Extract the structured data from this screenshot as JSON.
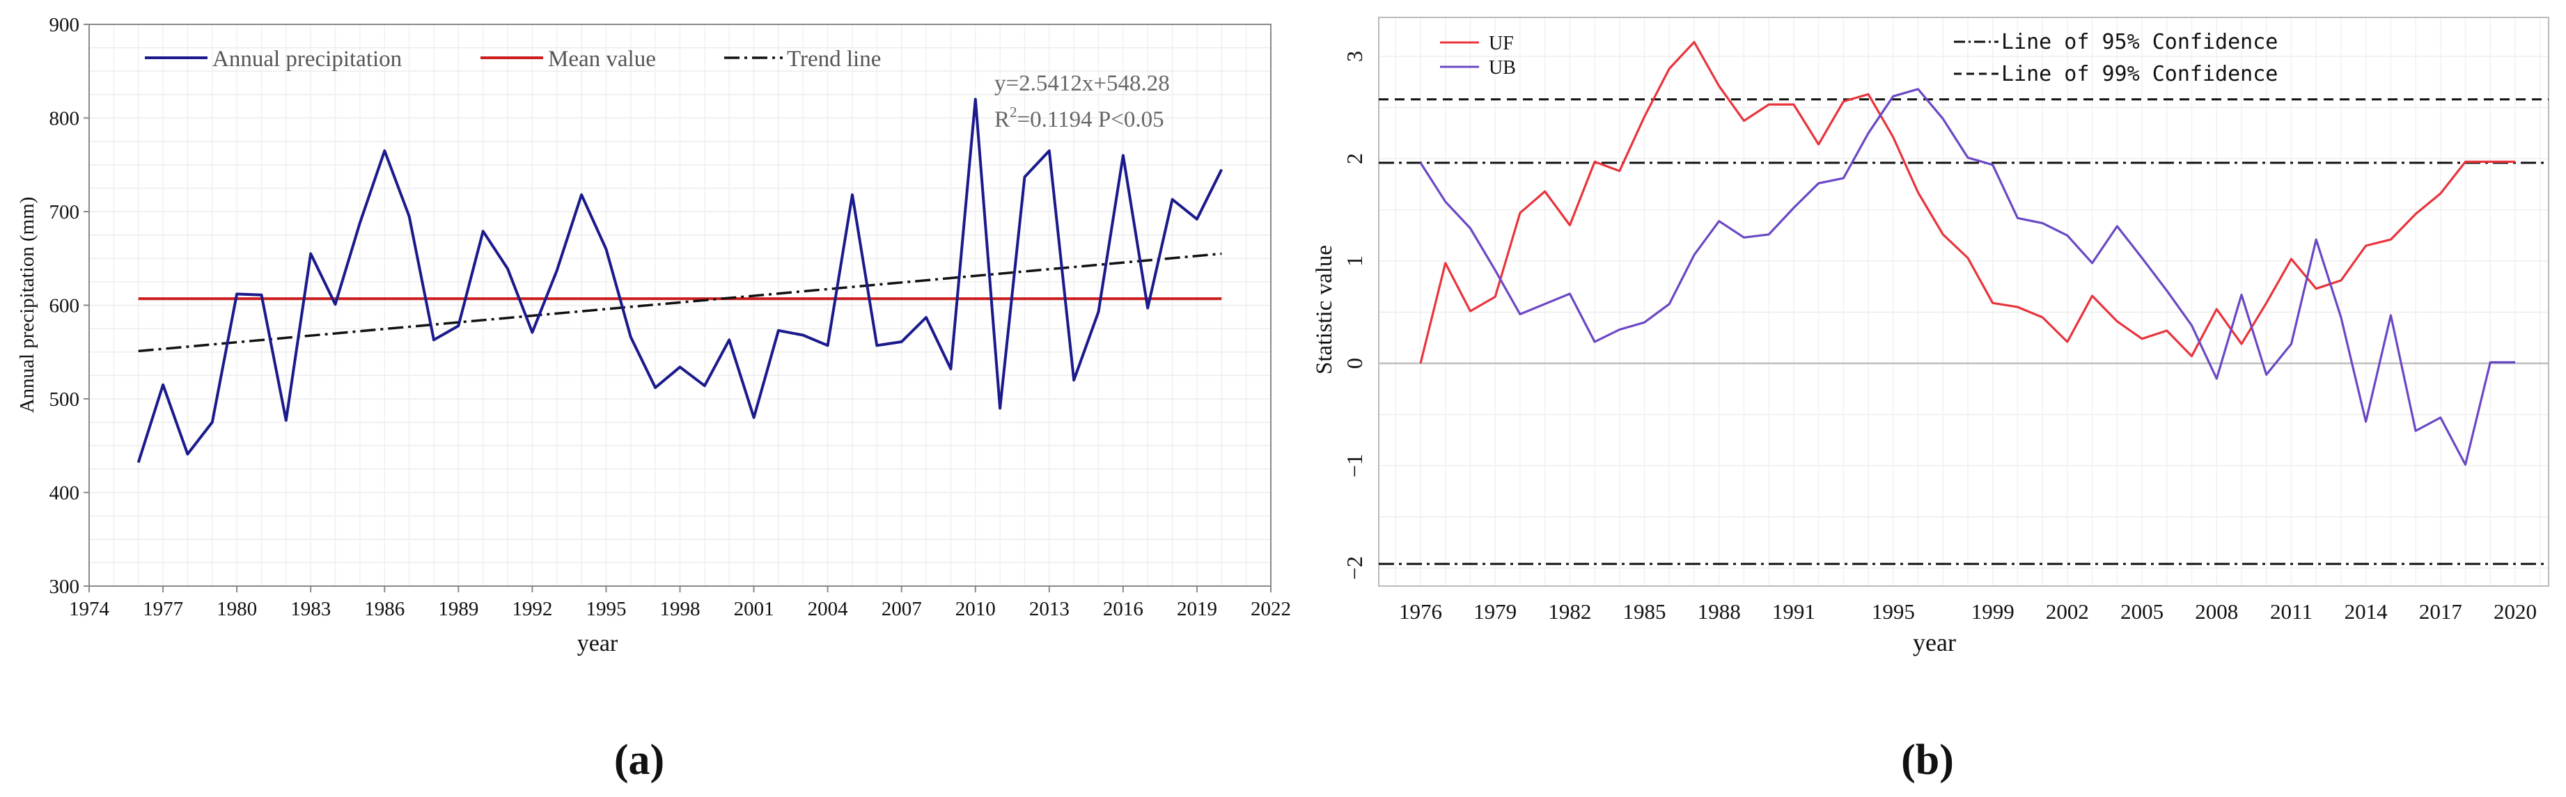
{
  "panels": [
    {
      "label": "(a)"
    },
    {
      "label": "(b)"
    }
  ],
  "chart_data": [
    {
      "type": "line",
      "xlabel": "year",
      "ylabel": "Annual precipitation (mm)",
      "xlim": [
        1974,
        2022
      ],
      "ylim": [
        300,
        900
      ],
      "xticks": [
        1974,
        1977,
        1980,
        1983,
        1986,
        1989,
        1992,
        1995,
        1998,
        2001,
        2004,
        2007,
        2010,
        2013,
        2016,
        2019,
        2022
      ],
      "yticks": [
        300,
        400,
        500,
        600,
        700,
        800,
        900
      ],
      "grid": true,
      "legend_placement": "top",
      "annotation": {
        "equation": "y=2.5412x+548.28",
        "r2_prefix": "R",
        "r2_sup": "2",
        "r2_rest": "=0.1194  P<0.05"
      },
      "series": [
        {
          "name": "Annual precipitation",
          "color": "#1a1a8c",
          "style": "solid",
          "x": [
            1976,
            1977,
            1978,
            1979,
            1980,
            1981,
            1982,
            1983,
            1984,
            1985,
            1986,
            1987,
            1988,
            1989,
            1990,
            1991,
            1992,
            1993,
            1994,
            1995,
            1996,
            1997,
            1998,
            1999,
            2000,
            2001,
            2002,
            2003,
            2004,
            2005,
            2006,
            2007,
            2008,
            2009,
            2010,
            2011,
            2012,
            2013,
            2014,
            2015,
            2016,
            2017,
            2018,
            2019,
            2020
          ],
          "y": [
            432,
            515,
            441,
            475,
            612,
            611,
            477,
            655,
            601,
            688,
            765,
            695,
            563,
            578,
            679,
            639,
            571,
            637,
            718,
            660,
            566,
            512,
            534,
            514,
            563,
            480,
            573,
            568,
            557,
            718,
            557,
            561,
            587,
            532,
            820,
            490,
            737,
            765,
            520,
            593,
            760,
            597,
            713,
            692,
            745
          ]
        },
        {
          "name": "Mean value",
          "color": "#cc1f1f",
          "style": "solid",
          "x": [
            1976,
            2020
          ],
          "y": [
            607,
            607
          ]
        },
        {
          "name": "Trend line",
          "color": "#111111",
          "style": "dashdot",
          "x": [
            1976,
            2020
          ],
          "y": [
            551,
            655
          ]
        }
      ]
    },
    {
      "type": "line",
      "xlabel": "year",
      "ylabel": "Statistic value",
      "xlim": [
        1975,
        2021
      ],
      "ylim": [
        -2.2,
        3.3
      ],
      "xticks": [
        1976,
        1979,
        1982,
        1985,
        1988,
        1991,
        1995,
        1999,
        2002,
        2005,
        2008,
        2011,
        2014,
        2017,
        2020
      ],
      "yticks": [
        -2,
        -1,
        0,
        1,
        2,
        3
      ],
      "grid": true,
      "legend_placement": "top",
      "series": [
        {
          "name": "UF",
          "color": "#e8343c",
          "style": "solid",
          "x": [
            1976,
            1977,
            1978,
            1979,
            1980,
            1981,
            1982,
            1983,
            1984,
            1985,
            1986,
            1987,
            1988,
            1989,
            1990,
            1991,
            1992,
            1993,
            1994,
            1995,
            1996,
            1997,
            1998,
            1999,
            2000,
            2001,
            2002,
            2003,
            2004,
            2005,
            2006,
            2007,
            2008,
            2009,
            2010,
            2011,
            2012,
            2013,
            2014,
            2015,
            2016,
            2017,
            2018,
            2019,
            2020
          ],
          "y": [
            0,
            0.98,
            0.51,
            0.65,
            1.47,
            1.68,
            1.35,
            1.97,
            1.88,
            2.41,
            2.88,
            3.14,
            2.71,
            2.37,
            2.53,
            2.53,
            2.14,
            2.56,
            2.63,
            2.21,
            1.67,
            1.26,
            1.03,
            0.59,
            0.55,
            0.45,
            0.21,
            0.66,
            0.41,
            0.24,
            0.32,
            0.07,
            0.53,
            0.19,
            0.59,
            1.02,
            0.73,
            0.81,
            1.15,
            1.21,
            1.46,
            1.66,
            1.97,
            1.97,
            1.97
          ]
        },
        {
          "name": "UB",
          "color": "#6a48c4",
          "style": "solid",
          "x": [
            1976,
            1977,
            1978,
            1979,
            1980,
            1981,
            1982,
            1983,
            1984,
            1985,
            1986,
            1987,
            1988,
            1989,
            1990,
            1991,
            1992,
            1993,
            1994,
            1995,
            1996,
            1997,
            1998,
            1999,
            2000,
            2001,
            2002,
            2003,
            2004,
            2005,
            2006,
            2007,
            2008,
            2009,
            2010,
            2011,
            2012,
            2013,
            2014,
            2015,
            2016,
            2017,
            2018,
            2019,
            2020
          ],
          "y": [
            1.96,
            1.58,
            1.32,
            0.91,
            0.48,
            0.58,
            0.68,
            0.21,
            0.33,
            0.4,
            0.58,
            1.06,
            1.39,
            1.23,
            1.26,
            1.52,
            1.76,
            1.81,
            2.25,
            2.61,
            2.68,
            2.39,
            2.01,
            1.94,
            1.42,
            1.37,
            1.25,
            0.98,
            1.34,
            1.03,
            0.71,
            0.37,
            -0.15,
            0.67,
            -0.11,
            0.19,
            1.21,
            0.45,
            -0.57,
            0.47,
            -0.66,
            -0.53,
            -0.99,
            0.01,
            0.01
          ]
        },
        {
          "name": "Line of 95% Confidence",
          "color": "#111111",
          "style": "dashdot",
          "values": [
            1.96,
            -1.96
          ]
        },
        {
          "name": "Line of 99% Confidence",
          "color": "#111111",
          "style": "dashed",
          "values": [
            2.58
          ]
        }
      ]
    }
  ]
}
